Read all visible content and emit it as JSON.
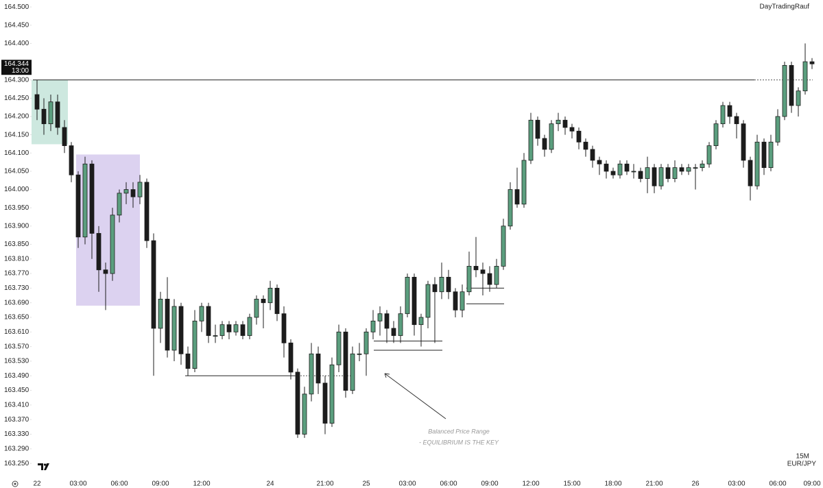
{
  "chart_data": {
    "type": "candlestick",
    "watermark": "DayTradingRauf",
    "timeframe": "15M",
    "symbol": "EUR/JPY",
    "price_tag": {
      "value": 164.344,
      "label": "164.344",
      "countdown": "13:00"
    },
    "annotations": [
      "Balanced Price Range",
      "- EQUILIBRIUM IS THE KEY"
    ],
    "categories": [
      "22",
      null,
      null,
      null,
      null,
      null,
      "03:00",
      null,
      null,
      null,
      null,
      null,
      "06:00",
      null,
      null,
      null,
      null,
      null,
      "09:00",
      null,
      null,
      null,
      null,
      null,
      "12:00",
      null,
      null,
      null,
      null,
      null,
      null,
      null,
      null,
      null,
      "24",
      null,
      null,
      null,
      null,
      null,
      null,
      null,
      "21:00",
      null,
      null,
      null,
      null,
      null,
      "25",
      null,
      null,
      null,
      null,
      null,
      "03:00",
      null,
      null,
      null,
      null,
      null,
      "06:00",
      null,
      null,
      null,
      null,
      null,
      "09:00",
      null,
      null,
      null,
      null,
      null,
      "12:00",
      null,
      null,
      null,
      null,
      null,
      "15:00",
      null,
      null,
      null,
      null,
      null,
      "18:00",
      null,
      null,
      null,
      null,
      null,
      "21:00",
      null,
      null,
      null,
      null,
      null,
      "26",
      null,
      null,
      null,
      null,
      null,
      "03:00",
      null,
      null,
      null,
      null,
      null,
      "06:00",
      null,
      null,
      null,
      null,
      "09:00"
    ],
    "up_color": "#5b9e7e",
    "down_color": "#1c1c1c",
    "open": [
      164.26,
      164.22,
      164.18,
      164.24,
      164.17,
      164.12,
      164.04,
      163.87,
      164.07,
      163.88,
      163.78,
      163.77,
      163.93,
      163.99,
      164.0,
      163.98,
      164.02,
      163.86,
      163.62,
      163.7,
      163.56,
      163.68,
      163.55,
      163.51,
      163.64,
      163.68,
      163.6,
      163.6,
      163.63,
      163.61,
      163.63,
      163.6,
      163.65,
      163.7,
      163.69,
      163.73,
      163.66,
      163.58,
      163.5,
      163.33,
      163.44,
      163.55,
      163.47,
      163.36,
      163.52,
      163.61,
      163.45,
      163.55,
      163.55,
      163.61,
      163.64,
      163.66,
      163.62,
      163.6,
      163.66,
      163.76,
      163.63,
      163.65,
      163.74,
      163.72,
      163.76,
      163.72,
      163.67,
      163.72,
      163.79,
      163.78,
      163.77,
      163.74,
      163.79,
      163.9,
      164.0,
      163.96,
      164.08,
      164.19,
      164.14,
      164.11,
      164.18,
      164.19,
      164.17,
      164.16,
      164.13,
      164.11,
      164.08,
      164.07,
      164.05,
      164.04,
      164.07,
      164.05,
      164.05,
      164.03,
      164.06,
      164.01,
      164.06,
      164.03,
      164.06,
      164.05,
      164.06,
      164.06,
      164.07,
      164.12,
      164.18,
      164.23,
      164.2,
      164.18,
      164.08,
      164.01,
      164.13,
      164.06,
      164.13,
      164.2,
      164.34,
      164.23,
      164.27,
      164.35
    ],
    "high": [
      164.3,
      164.25,
      164.26,
      164.26,
      164.19,
      164.13,
      164.05,
      164.09,
      164.08,
      163.9,
      163.8,
      163.95,
      164.0,
      164.02,
      164.02,
      164.04,
      164.03,
      163.88,
      163.72,
      163.76,
      163.7,
      163.69,
      163.57,
      163.67,
      163.69,
      163.69,
      163.63,
      163.64,
      163.64,
      163.64,
      163.64,
      163.66,
      163.71,
      163.71,
      163.75,
      163.74,
      163.68,
      163.59,
      163.51,
      163.46,
      163.58,
      163.57,
      163.49,
      163.54,
      163.63,
      163.62,
      163.57,
      163.58,
      163.62,
      163.67,
      163.68,
      163.67,
      163.64,
      163.68,
      163.77,
      163.77,
      163.66,
      163.75,
      163.76,
      163.8,
      163.78,
      163.73,
      163.74,
      163.83,
      163.87,
      163.8,
      163.79,
      163.81,
      163.92,
      164.02,
      164.06,
      164.1,
      164.21,
      164.2,
      164.15,
      164.19,
      164.21,
      164.2,
      164.18,
      164.17,
      164.14,
      164.12,
      164.09,
      164.08,
      164.06,
      164.08,
      164.08,
      164.07,
      164.06,
      164.09,
      164.07,
      164.07,
      164.07,
      164.08,
      164.07,
      164.07,
      164.07,
      164.08,
      164.13,
      164.19,
      164.24,
      164.24,
      164.21,
      164.19,
      164.09,
      164.15,
      164.14,
      164.15,
      164.22,
      164.35,
      164.35,
      164.28,
      164.4,
      164.36
    ],
    "low": [
      164.19,
      164.15,
      164.16,
      164.15,
      164.1,
      164.02,
      163.84,
      163.85,
      163.81,
      163.72,
      163.67,
      163.75,
      163.91,
      163.96,
      163.95,
      163.96,
      163.84,
      163.49,
      163.58,
      163.54,
      163.53,
      163.52,
      163.49,
      163.5,
      163.61,
      163.58,
      163.58,
      163.59,
      163.59,
      163.6,
      163.59,
      163.59,
      163.63,
      163.62,
      163.67,
      163.64,
      163.54,
      163.48,
      163.32,
      163.32,
      163.42,
      163.44,
      163.33,
      163.35,
      163.5,
      163.43,
      163.44,
      163.53,
      163.49,
      163.59,
      163.6,
      163.58,
      163.58,
      163.58,
      163.65,
      163.6,
      163.57,
      163.62,
      163.58,
      163.7,
      163.7,
      163.65,
      163.65,
      163.71,
      163.76,
      163.71,
      163.72,
      163.73,
      163.78,
      163.89,
      163.95,
      163.95,
      164.07,
      164.12,
      164.09,
      164.1,
      164.16,
      164.15,
      164.14,
      164.11,
      164.09,
      164.06,
      164.04,
      164.03,
      164.03,
      164.03,
      164.04,
      164.03,
      164.02,
      163.99,
      163.99,
      164.0,
      164.02,
      164.02,
      164.04,
      164.04,
      164.0,
      164.05,
      164.06,
      164.11,
      164.17,
      164.18,
      164.14,
      164.06,
      163.97,
      164.0,
      164.04,
      164.05,
      164.12,
      164.19,
      164.21,
      164.2,
      164.26,
      164.33
    ],
    "close": [
      164.22,
      164.18,
      164.24,
      164.17,
      164.12,
      164.04,
      163.87,
      164.07,
      163.88,
      163.78,
      163.77,
      163.93,
      163.99,
      164.0,
      163.98,
      164.02,
      163.86,
      163.62,
      163.7,
      163.56,
      163.68,
      163.55,
      163.51,
      163.64,
      163.68,
      163.6,
      163.6,
      163.63,
      163.61,
      163.63,
      163.6,
      163.65,
      163.7,
      163.69,
      163.73,
      163.66,
      163.58,
      163.5,
      163.33,
      163.44,
      163.55,
      163.47,
      163.36,
      163.52,
      163.61,
      163.45,
      163.55,
      163.55,
      163.61,
      163.64,
      163.66,
      163.62,
      163.6,
      163.66,
      163.76,
      163.63,
      163.65,
      163.74,
      163.72,
      163.76,
      163.72,
      163.67,
      163.72,
      163.79,
      163.78,
      163.77,
      163.74,
      163.79,
      163.9,
      164.0,
      163.96,
      164.08,
      164.19,
      164.14,
      164.11,
      164.18,
      164.19,
      164.17,
      164.16,
      164.13,
      164.11,
      164.08,
      164.07,
      164.05,
      164.04,
      164.07,
      164.05,
      164.05,
      164.03,
      164.06,
      164.01,
      164.06,
      164.03,
      164.06,
      164.05,
      164.06,
      164.06,
      164.07,
      164.12,
      164.18,
      164.23,
      164.2,
      164.18,
      164.08,
      164.01,
      164.13,
      164.06,
      164.13,
      164.2,
      164.34,
      164.23,
      164.27,
      164.35,
      164.344
    ],
    "levels": [
      164.3,
      163.49,
      163.585,
      163.56,
      163.73,
      163.687
    ],
    "zones": [
      {
        "top": 164.3,
        "bottom": 164.124,
        "color": "#cde8df"
      },
      {
        "top": 164.096,
        "bottom": 163.682,
        "color": "#dcd2f0"
      }
    ],
    "ylim": [
      163.224,
      164.519
    ],
    "yticks": [
      {
        "value": 164.5,
        "label": "164.500"
      },
      {
        "value": 164.45,
        "label": "164.450"
      },
      {
        "value": 164.4,
        "label": "164.400"
      },
      {
        "value": 164.3,
        "label": "164.300"
      },
      {
        "value": 164.25,
        "label": "164.250"
      },
      {
        "value": 164.2,
        "label": "164.200"
      },
      {
        "value": 164.15,
        "label": "164.150"
      },
      {
        "value": 164.1,
        "label": "164.100"
      },
      {
        "value": 164.05,
        "label": "164.050"
      },
      {
        "value": 164.0,
        "label": "164.000"
      },
      {
        "value": 163.95,
        "label": "163.950"
      },
      {
        "value": 163.9,
        "label": "163.900"
      },
      {
        "value": 163.85,
        "label": "163.850"
      },
      {
        "value": 163.81,
        "label": "163.810"
      },
      {
        "value": 163.77,
        "label": "163.770"
      },
      {
        "value": 163.73,
        "label": "163.730"
      },
      {
        "value": 163.69,
        "label": "163.690"
      },
      {
        "value": 163.65,
        "label": "163.650"
      },
      {
        "value": 163.61,
        "label": "163.610"
      },
      {
        "value": 163.57,
        "label": "163.570"
      },
      {
        "value": 163.53,
        "label": "163.530"
      },
      {
        "value": 163.49,
        "label": "163.490"
      },
      {
        "value": 163.45,
        "label": "163.450"
      },
      {
        "value": 163.41,
        "label": "163.410"
      },
      {
        "value": 163.37,
        "label": "163.370"
      },
      {
        "value": 163.33,
        "label": "163.330"
      },
      {
        "value": 163.29,
        "label": "163.290"
      },
      {
        "value": 163.25,
        "label": "163.250"
      }
    ],
    "grid": false
  }
}
